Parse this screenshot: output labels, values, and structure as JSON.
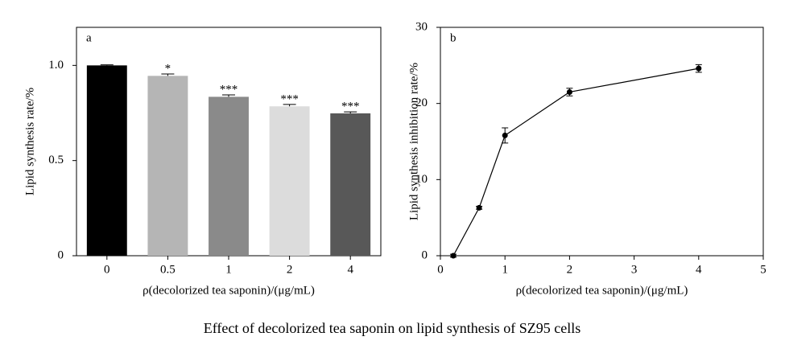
{
  "caption": "Effect of decolorized tea saponin on lipid synthesis of SZ95 cells",
  "chart_data": [
    {
      "type": "bar",
      "panel": "a",
      "xlabel": "ρ(decolorized tea saponin)/(μg/mL)",
      "ylabel": "Lipid synthesis rate/%",
      "categories": [
        "0",
        "0.5",
        "1",
        "2",
        "4"
      ],
      "values": [
        1.0,
        0.945,
        0.835,
        0.785,
        0.748
      ],
      "errors": [
        0.003,
        0.01,
        0.01,
        0.01,
        0.008
      ],
      "significance": [
        null,
        "*",
        "***",
        "***",
        "***"
      ],
      "colors": [
        "#000000",
        "#b5b5b5",
        "#8a8a8a",
        "#dcdcdc",
        "#585858"
      ],
      "ylim": [
        0,
        1.2
      ],
      "yticks": [
        0,
        0.5,
        {
          "value": 1,
          "label": "1.0"
        }
      ]
    },
    {
      "type": "line",
      "panel": "b",
      "xlabel": "ρ(decolorized tea saponin)/(μg/mL)",
      "ylabel": "Lipid synthesis inhibition rate/%",
      "x": [
        0.2,
        0.6,
        1,
        2,
        4
      ],
      "values": [
        0,
        6.3,
        15.8,
        21.5,
        24.6
      ],
      "errors": [
        0.2,
        0.2,
        1.0,
        0.5,
        0.5
      ],
      "color": "#000000",
      "xlim": [
        0,
        5
      ],
      "xticks": [
        0,
        1,
        2,
        3,
        4,
        5
      ],
      "ylim": [
        0,
        30
      ],
      "yticks": [
        0,
        10,
        20,
        30
      ]
    }
  ]
}
